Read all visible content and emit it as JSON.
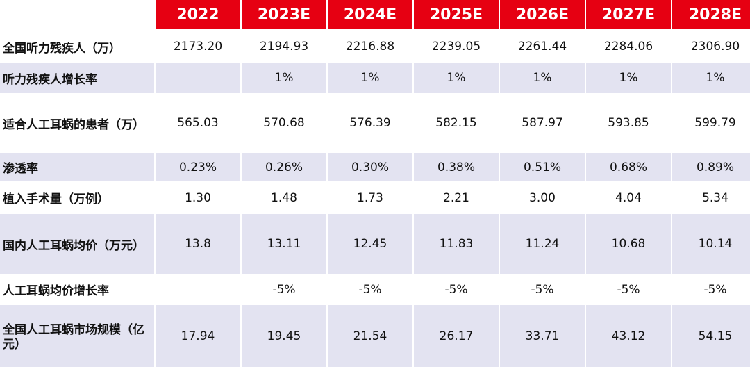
{
  "header": {
    "corner": "",
    "years": [
      "2022",
      "2023E",
      "2024E",
      "2025E",
      "2026E",
      "2027E",
      "2028E"
    ]
  },
  "rows": [
    {
      "label": "全国听力残疾人（万）",
      "values": [
        "2173.20",
        "2194.93",
        "2216.88",
        "2239.05",
        "2261.44",
        "2284.06",
        "2306.90"
      ]
    },
    {
      "label": "听力残疾人增长率",
      "values": [
        "",
        "1%",
        "1%",
        "1%",
        "1%",
        "1%",
        "1%"
      ]
    },
    {
      "label": "适合人工耳蜗的患者（万）",
      "values": [
        "565.03",
        "570.68",
        "576.39",
        "582.15",
        "587.97",
        "593.85",
        "599.79"
      ]
    },
    {
      "label": "渗透率",
      "values": [
        "0.23%",
        "0.26%",
        "0.30%",
        "0.38%",
        "0.51%",
        "0.68%",
        "0.89%"
      ]
    },
    {
      "label": "植入手术量（万例）",
      "values": [
        "1.30",
        "1.48",
        "1.73",
        "2.21",
        "3.00",
        "4.04",
        "5.34"
      ]
    },
    {
      "label": "国内人工耳蜗均价（万元）",
      "values": [
        "13.8",
        "13.11",
        "12.45",
        "11.83",
        "11.24",
        "10.68",
        "10.14"
      ]
    },
    {
      "label": "人工耳蜗均价增长率",
      "values": [
        "",
        "-5%",
        "-5%",
        "-5%",
        "-5%",
        "-5%",
        "-5%"
      ]
    },
    {
      "label": "全国人工耳蜗市场规模（亿元）",
      "values": [
        "17.94",
        "19.45",
        "21.54",
        "26.17",
        "33.71",
        "43.12",
        "54.15"
      ]
    }
  ],
  "colors": {
    "header_bg": "#e60012",
    "header_text": "#ffffff",
    "band_lavender": "#e3e3f1",
    "band_white": "#ffffff"
  }
}
